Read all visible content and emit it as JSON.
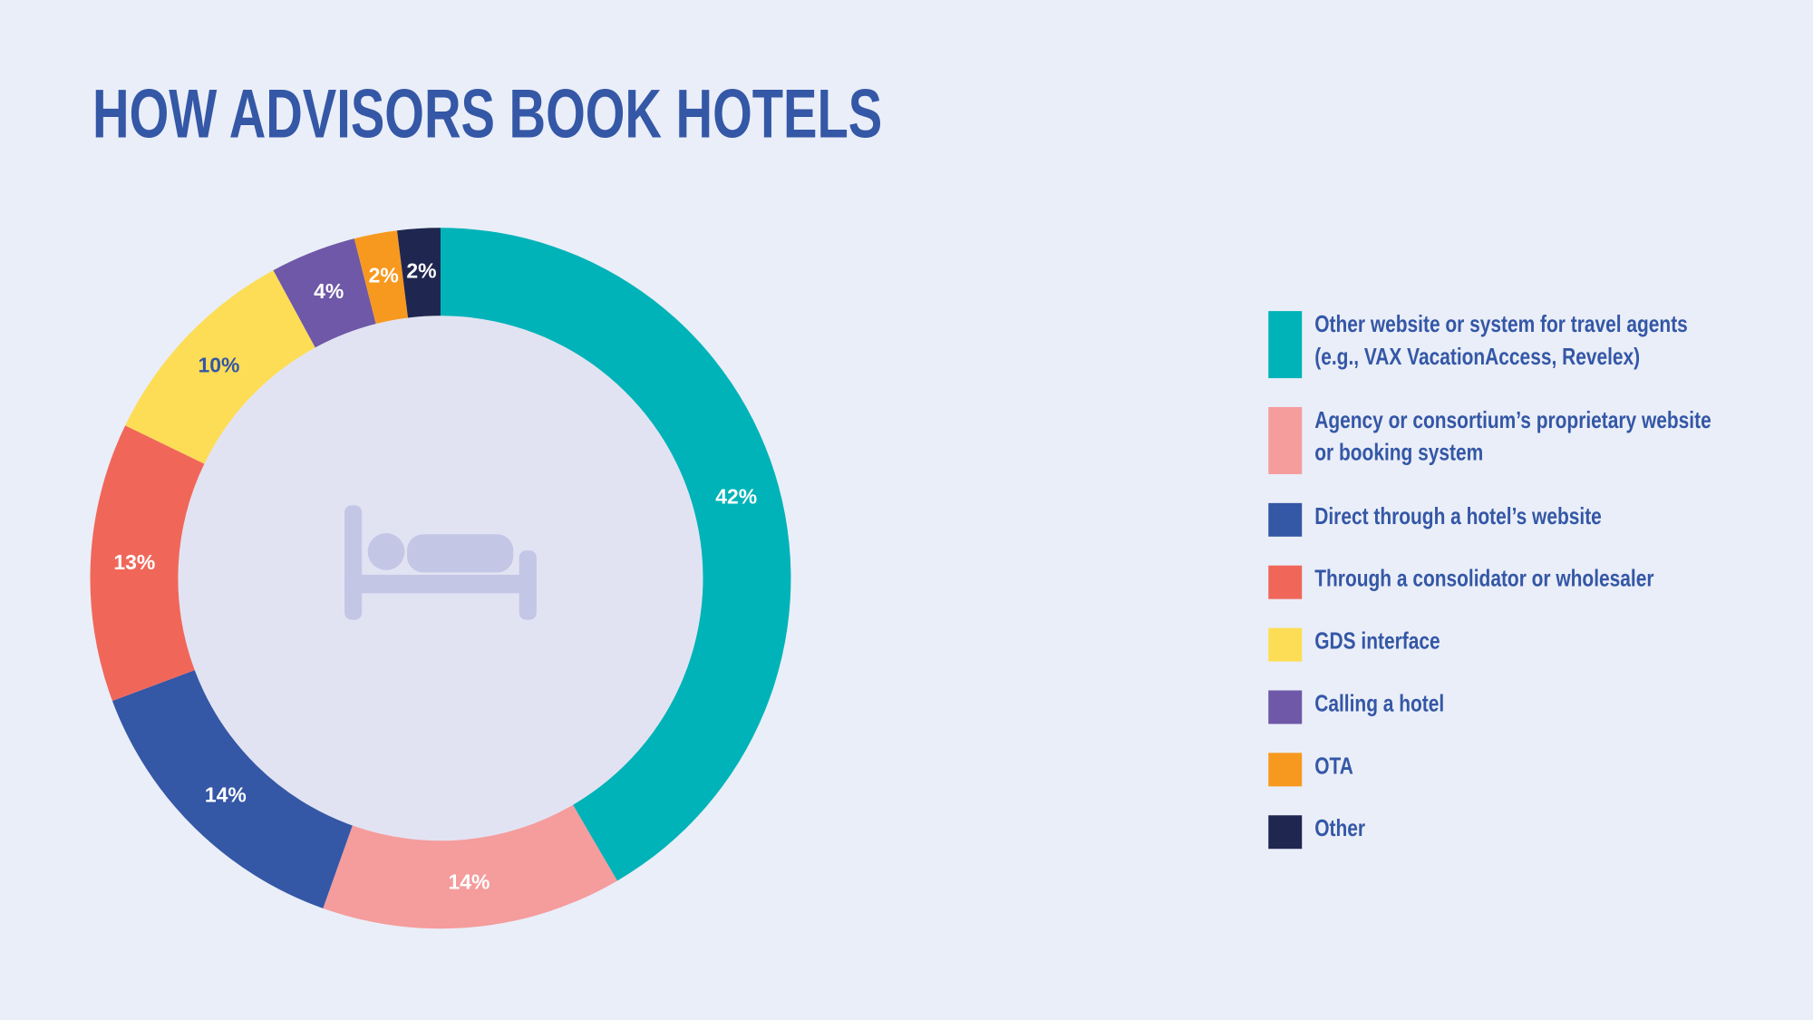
{
  "chart_data": {
    "type": "donut",
    "title": "HOW ADVISORS BOOK HOTELS",
    "categories": [
      "Other website or system for travel agents (e.g., VAX VacationAccess, Revelex)",
      "Agency or consortium’s proprietary website or booking system",
      "Direct through a hotel’s website",
      "Through a consolidator or wholesaler",
      "GDS interface",
      "Calling a hotel",
      "OTA",
      "Other"
    ],
    "values": [
      42,
      14,
      14,
      13,
      10,
      4,
      2,
      2
    ],
    "value_labels": [
      "42%",
      "14%",
      "14%",
      "13%",
      "10%",
      "4%",
      "2%",
      "2%"
    ],
    "colors": [
      "#00b3b8",
      "#f59c9c",
      "#3457a6",
      "#f0675a",
      "#fddd55",
      "#6e58a7",
      "#f7991f",
      "#1f2750"
    ],
    "legend": "right"
  }
}
